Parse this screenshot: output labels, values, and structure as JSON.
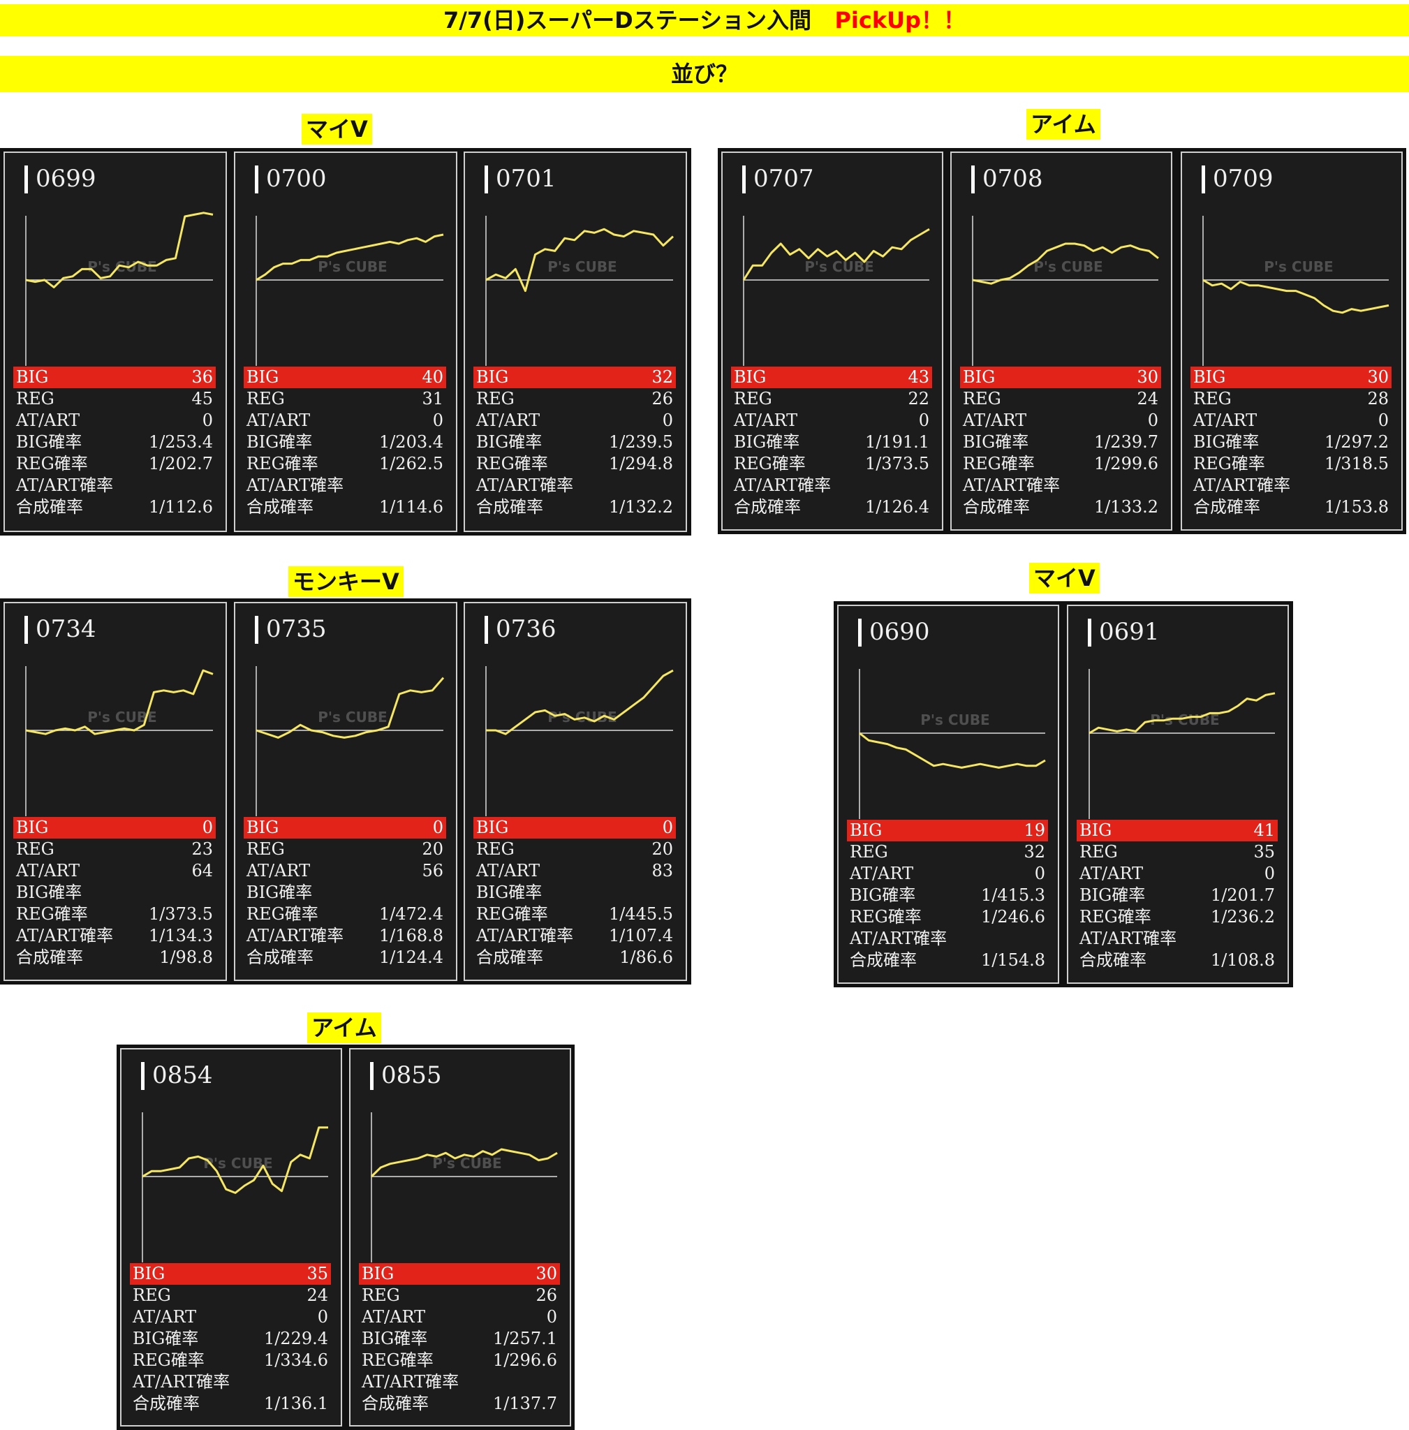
{
  "header": {
    "title": "7/7(日)スーパーDステーション入間",
    "pickup": "PickUp！！",
    "subtitle": "並び？"
  },
  "colors": {
    "banner": "#ffff00",
    "big_row": "#e2231a",
    "graph_line": "#f5e663",
    "card_bg": "#1c1c1c"
  },
  "watermark": "P's CUBE",
  "stat_labels": [
    "BIG",
    "REG",
    "AT/ART",
    "BIG確率",
    "REG確率",
    "AT/ART確率",
    "合成確率"
  ],
  "groups": [
    {
      "label": "マイV",
      "machines": [
        {
          "number": "0699",
          "stats": [
            "36",
            "45",
            "0",
            "1/253.4",
            "1/202.7",
            "",
            "1/112.6"
          ],
          "graph": [
            0,
            -1,
            0,
            -4,
            1,
            2,
            6,
            6,
            1,
            2,
            8,
            7,
            10,
            8,
            8,
            11,
            12,
            35,
            36,
            37,
            36
          ]
        },
        {
          "number": "0700",
          "stats": [
            "40",
            "31",
            "0",
            "1/203.4",
            "1/262.5",
            "",
            "1/114.6"
          ],
          "graph": [
            0,
            3,
            7,
            9,
            9,
            11,
            11,
            13,
            13,
            15,
            16,
            17,
            18,
            19,
            20,
            21,
            20,
            22,
            23,
            21,
            24,
            25
          ]
        },
        {
          "number": "0701",
          "stats": [
            "32",
            "26",
            "0",
            "1/239.5",
            "1/294.8",
            "",
            "1/132.2"
          ],
          "graph": [
            0,
            3,
            1,
            6,
            -6,
            14,
            17,
            16,
            23,
            22,
            27,
            26,
            28,
            25,
            24,
            27,
            26,
            25,
            19,
            24
          ]
        }
      ]
    },
    {
      "label": "アイム",
      "machines": [
        {
          "number": "0707",
          "stats": [
            "43",
            "22",
            "0",
            "1/191.1",
            "1/373.5",
            "",
            "1/126.4"
          ],
          "graph": [
            0,
            8,
            8,
            15,
            20,
            14,
            17,
            12,
            17,
            13,
            16,
            11,
            15,
            10,
            16,
            13,
            18,
            17,
            22,
            25,
            28
          ]
        },
        {
          "number": "0708",
          "stats": [
            "30",
            "24",
            "0",
            "1/239.7",
            "1/299.6",
            "",
            "1/133.2"
          ],
          "graph": [
            0,
            -1,
            -2,
            0,
            1,
            4,
            8,
            11,
            16,
            18,
            20,
            20,
            19,
            16,
            18,
            15,
            18,
            19,
            17,
            16,
            12
          ]
        },
        {
          "number": "0709",
          "stats": [
            "30",
            "28",
            "0",
            "1/297.2",
            "1/318.5",
            "",
            "1/153.8"
          ],
          "graph": [
            0,
            -3,
            -2,
            -5,
            -1,
            -3,
            -3,
            -4,
            -5,
            -6,
            -6,
            -8,
            -10,
            -14,
            -17,
            -18,
            -16,
            -17,
            -16,
            -15,
            -14
          ]
        }
      ]
    },
    {
      "label": "モンキーV",
      "machines": [
        {
          "number": "0734",
          "stats": [
            "0",
            "23",
            "64",
            "",
            "1/373.5",
            "1/134.3",
            "1/98.8"
          ],
          "graph": [
            0,
            -1,
            -2,
            0,
            1,
            0,
            2,
            -2,
            -1,
            0,
            1,
            0,
            3,
            21,
            22,
            21,
            22,
            20,
            33,
            31
          ]
        },
        {
          "number": "0735",
          "stats": [
            "0",
            "20",
            "56",
            "",
            "1/472.4",
            "1/168.8",
            "1/124.4"
          ],
          "graph": [
            0,
            -2,
            -4,
            -1,
            3,
            0,
            -1,
            -3,
            -4,
            -3,
            -1,
            0,
            2,
            20,
            22,
            21,
            22,
            29
          ]
        },
        {
          "number": "0736",
          "stats": [
            "0",
            "20",
            "83",
            "",
            "1/445.5",
            "1/107.4",
            "1/86.6"
          ],
          "graph": [
            0,
            0,
            -2,
            2,
            6,
            10,
            11,
            8,
            9,
            6,
            7,
            5,
            8,
            6,
            10,
            14,
            18,
            24,
            30,
            33
          ]
        }
      ]
    },
    {
      "label": "マイV",
      "machines": [
        {
          "number": "0690",
          "stats": [
            "19",
            "32",
            "0",
            "1/415.3",
            "1/246.6",
            "",
            "1/154.8"
          ],
          "graph": [
            0,
            -4,
            -5,
            -6,
            -8,
            -9,
            -12,
            -15,
            -18,
            -17,
            -18,
            -19,
            -18,
            -17,
            -18,
            -19,
            -18,
            -17,
            -18,
            -18,
            -15
          ]
        },
        {
          "number": "0691",
          "stats": [
            "41",
            "35",
            "0",
            "1/201.7",
            "1/236.2",
            "",
            "1/108.8"
          ],
          "graph": [
            0,
            3,
            2,
            1,
            2,
            1,
            6,
            7,
            7,
            8,
            8,
            9,
            9,
            11,
            11,
            12,
            15,
            19,
            18,
            21,
            22
          ]
        }
      ]
    },
    {
      "label": "アイム",
      "machines": [
        {
          "number": "0854",
          "stats": [
            "35",
            "24",
            "0",
            "1/229.4",
            "1/334.6",
            "",
            "1/136.1"
          ],
          "graph": [
            0,
            3,
            3,
            4,
            5,
            10,
            11,
            9,
            3,
            -7,
            -9,
            -5,
            -2,
            6,
            -4,
            -8,
            8,
            12,
            10,
            27,
            27
          ]
        },
        {
          "number": "0855",
          "stats": [
            "30",
            "26",
            "0",
            "1/257.1",
            "1/296.6",
            "",
            "1/137.7"
          ],
          "graph": [
            0,
            5,
            7,
            8,
            9,
            10,
            12,
            11,
            13,
            10,
            12,
            11,
            14,
            12,
            15,
            14,
            13,
            12,
            9,
            10,
            13
          ]
        }
      ]
    }
  ]
}
